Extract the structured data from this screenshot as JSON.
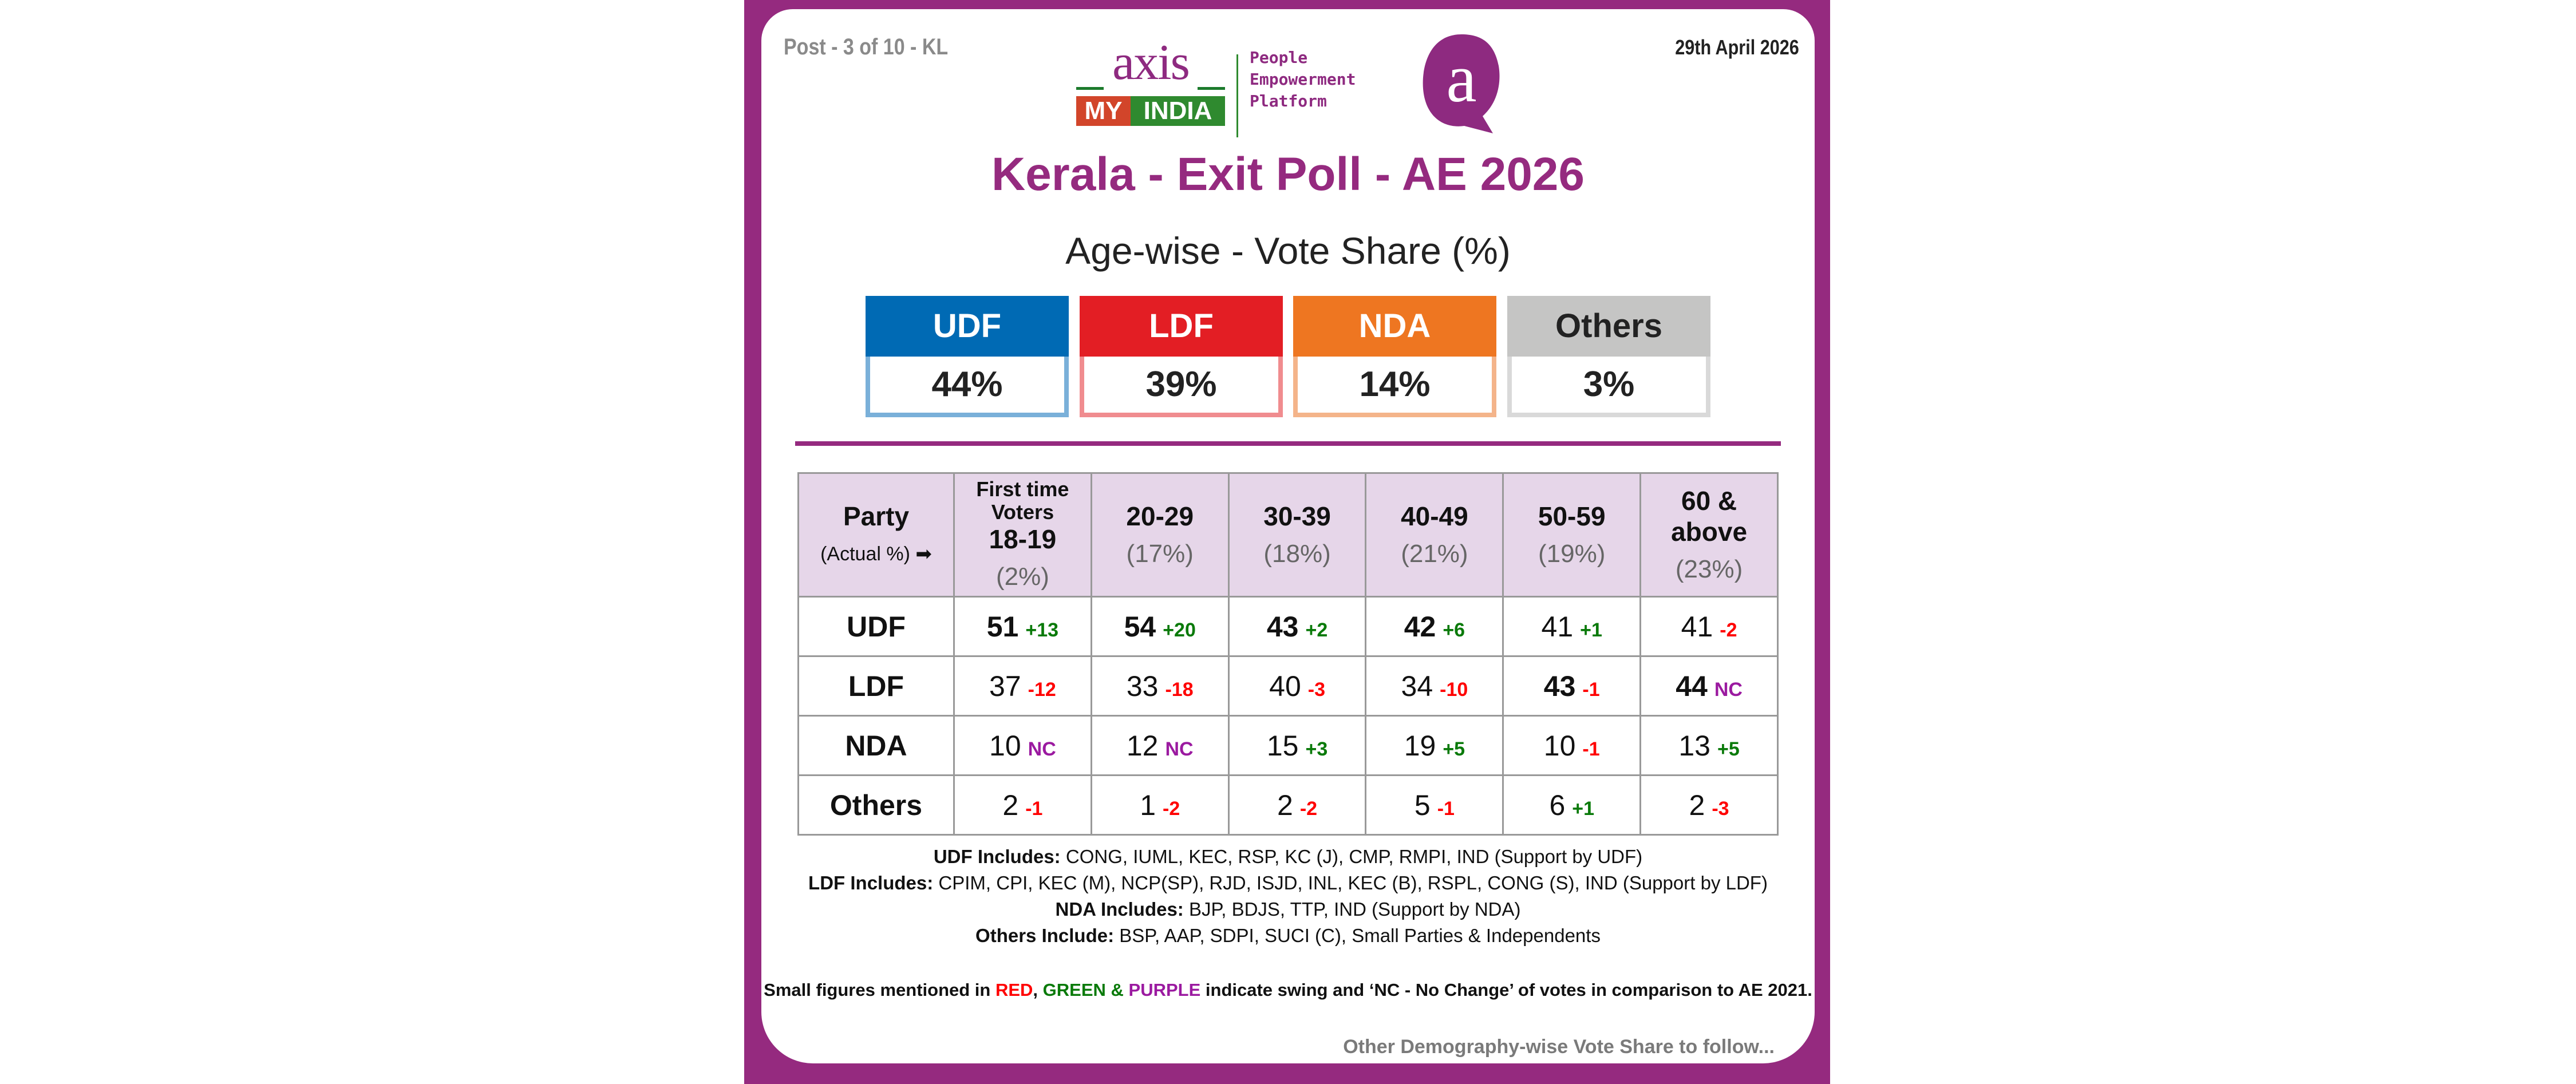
{
  "header": {
    "post_label": "Post - 3 of 10 - KL",
    "date": "29th April 2026",
    "logo": {
      "axis": "axis",
      "registered": "®",
      "my": "MY",
      "india": "INDIA",
      "tagline": [
        "People",
        "Empowerment",
        "Platform"
      ],
      "badge_letter": "a"
    },
    "title": "Kerala - Exit Poll - AE 2026",
    "subtitle": "Age-wise - Vote Share (%)"
  },
  "summary": [
    {
      "party": "UDF",
      "share": "44%",
      "color": "#006AB4",
      "border": "#7AB0D9",
      "text_color": "#ffffff"
    },
    {
      "party": "LDF",
      "share": "39%",
      "color": "#E31E24",
      "border": "#F08C8F",
      "text_color": "#ffffff"
    },
    {
      "party": "NDA",
      "share": "14%",
      "color": "#EE7621",
      "border": "#F4B48A",
      "text_color": "#ffffff"
    },
    {
      "party": "Others",
      "share": "3%",
      "color": "#C5C5C4",
      "border": "#D9D9D9",
      "text_color": "#222222"
    }
  ],
  "colors": {
    "brand": "#952A7F",
    "header_bg": "#E6D6E9",
    "up": "#0A7A0A",
    "down": "#FF0000",
    "nc": "#9B1AA0"
  },
  "table": {
    "party_header": "Party",
    "actual_label": "(Actual %)",
    "arrow": "➡",
    "columns": [
      {
        "prefix": "First time Voters",
        "label": "18-19",
        "share": "(2%)"
      },
      {
        "label": "20-29",
        "share": "(17%)"
      },
      {
        "label": "30-39",
        "share": "(18%)"
      },
      {
        "label": "40-49",
        "share": "(21%)"
      },
      {
        "label": "50-59",
        "share": "(19%)"
      },
      {
        "label": "60 & above",
        "share": "(23%)"
      }
    ],
    "rows": [
      {
        "party": "UDF",
        "cells": [
          {
            "v": "51",
            "s": "+13",
            "bold": true
          },
          {
            "v": "54",
            "s": "+20",
            "bold": true
          },
          {
            "v": "43",
            "s": "+2",
            "bold": true
          },
          {
            "v": "42",
            "s": "+6",
            "bold": true
          },
          {
            "v": "41",
            "s": "+1"
          },
          {
            "v": "41",
            "s": "-2"
          }
        ]
      },
      {
        "party": "LDF",
        "cells": [
          {
            "v": "37",
            "s": "-12"
          },
          {
            "v": "33",
            "s": "-18"
          },
          {
            "v": "40",
            "s": "-3"
          },
          {
            "v": "34",
            "s": "-10"
          },
          {
            "v": "43",
            "s": "-1",
            "bold": true
          },
          {
            "v": "44",
            "s": "NC",
            "bold": true
          }
        ]
      },
      {
        "party": "NDA",
        "cells": [
          {
            "v": "10",
            "s": "NC"
          },
          {
            "v": "12",
            "s": "NC"
          },
          {
            "v": "15",
            "s": "+3"
          },
          {
            "v": "19",
            "s": "+5"
          },
          {
            "v": "10",
            "s": "-1"
          },
          {
            "v": "13",
            "s": "+5"
          }
        ]
      },
      {
        "party": "Others",
        "cells": [
          {
            "v": "2",
            "s": "-1"
          },
          {
            "v": "1",
            "s": "-2"
          },
          {
            "v": "2",
            "s": "-2"
          },
          {
            "v": "5",
            "s": "-1"
          },
          {
            "v": "6",
            "s": "+1"
          },
          {
            "v": "2",
            "s": "-3"
          }
        ]
      }
    ]
  },
  "notes": [
    {
      "label": "UDF Includes:",
      "text": " CONG, IUML, KEC, RSP, KC (J), CMP, RMPI, IND (Support by UDF)"
    },
    {
      "label": "LDF Includes:",
      "text": " CPIM, CPI, KEC (M), NCP(SP), RJD, ISJD, INL, KEC (B), RSPL, CONG (S), IND (Support by LDF)"
    },
    {
      "label": "NDA Includes:",
      "text": " BJP, BDJS, TTP, IND (Support by NDA)"
    },
    {
      "label": "Others Include:",
      "text": " BSP, AAP, SDPI, SUCI (C), Small Parties & Independents"
    }
  ],
  "legend": {
    "before": "Small figures mentioned in ",
    "red": "RED",
    "comma": ", ",
    "green": "GREEN &",
    "space": " ",
    "purple": "PURPLE",
    "after": " indicate swing and ‘NC - No Change’ of votes in comparison to AE 2021."
  },
  "footer": "Other Demography-wise Vote Share to follow..."
}
